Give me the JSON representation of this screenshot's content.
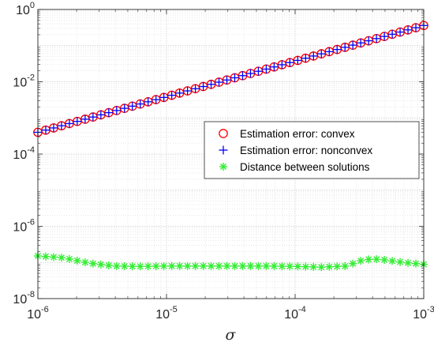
{
  "chart_data": {
    "type": "scatter",
    "title": "",
    "xlabel": "σ",
    "ylabel": "",
    "xscale": "log",
    "yscale": "log",
    "xlim": [
      1e-06,
      0.001
    ],
    "ylim": [
      1e-08,
      1
    ],
    "grid": true,
    "minor_grid": true,
    "legend_position": "right",
    "x_ticks": [
      {
        "base": "10",
        "exp": "-6",
        "value": 1e-06
      },
      {
        "base": "10",
        "exp": "-5",
        "value": 1e-05
      },
      {
        "base": "10",
        "exp": "-4",
        "value": 0.0001
      },
      {
        "base": "10",
        "exp": "-3",
        "value": 0.001
      }
    ],
    "y_ticks": [
      {
        "base": "10",
        "exp": "-8",
        "value": 1e-08
      },
      {
        "base": "10",
        "exp": "-6",
        "value": 1e-06
      },
      {
        "base": "10",
        "exp": "-4",
        "value": 0.0001
      },
      {
        "base": "10",
        "exp": "-2",
        "value": 0.01
      },
      {
        "base": "10",
        "exp": "0",
        "value": 1
      }
    ],
    "n_points": 50,
    "series": [
      {
        "name": "Estimation error: convex",
        "marker": "circle",
        "color": "#ff0000",
        "trend": "power-law",
        "y_at_xmin": 0.0004,
        "y_at_xmax": 0.36
      },
      {
        "name": "Estimation error: nonconvex",
        "marker": "plus",
        "color": "#0000ff",
        "trend": "power-law",
        "y_at_xmin": 0.0004,
        "y_at_xmax": 0.36
      },
      {
        "name": "Distance between solutions",
        "marker": "asterisk",
        "color": "#33ee33",
        "log10_x": [
          -6,
          -5.8,
          -5.6,
          -5.4,
          -5.2,
          -5,
          -4.8,
          -4.6,
          -4.4,
          -4.2,
          -4,
          -3.8,
          -3.6,
          -3.5,
          -3.4,
          -3.3,
          -3.2,
          -3.1,
          -3
        ],
        "log10_y": [
          -6.82,
          -6.87,
          -7.02,
          -7.1,
          -7.11,
          -7.1,
          -7.1,
          -7.1,
          -7.1,
          -7.1,
          -7.11,
          -7.13,
          -7.1,
          -6.96,
          -6.9,
          -6.93,
          -6.98,
          -7.02,
          -7.05
        ]
      }
    ]
  }
}
